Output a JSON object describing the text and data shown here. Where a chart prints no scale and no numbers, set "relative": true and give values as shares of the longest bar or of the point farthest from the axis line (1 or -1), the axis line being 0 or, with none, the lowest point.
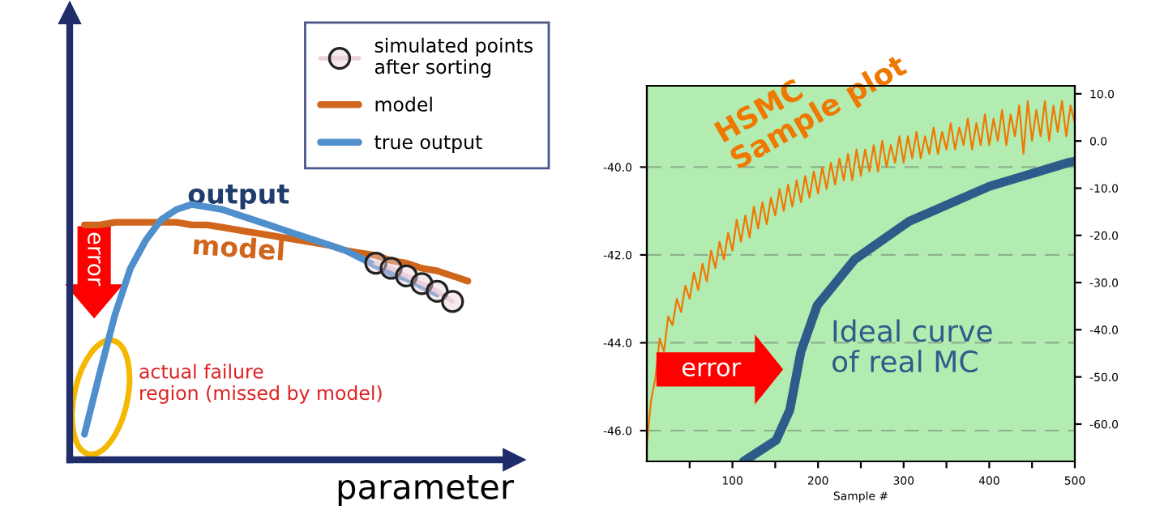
{
  "chart_data": [
    {
      "type": "line",
      "relative": true,
      "xlabel": "parameter",
      "legend": "top right",
      "categories": [
        null,
        null,
        null,
        null,
        null,
        null,
        null,
        null,
        null,
        null,
        null,
        null,
        null,
        null,
        null,
        null,
        null,
        null,
        null,
        null,
        null,
        null,
        null,
        null,
        null,
        null
      ],
      "series": [
        {
          "name": "simulated points\nafter sorting",
          "marker": "circle",
          "color": "#ead1dc",
          "values": [
            null,
            null,
            null,
            null,
            null,
            null,
            null,
            null,
            null,
            null,
            null,
            null,
            null,
            null,
            null,
            null,
            null,
            null,
            null,
            0.77,
            0.75,
            0.72,
            0.69,
            0.66,
            0.62,
            null
          ]
        },
        {
          "name": "model",
          "color": "#d0651c",
          "values": [
            0.92,
            0.92,
            0.93,
            0.93,
            0.93,
            0.93,
            0.93,
            0.92,
            0.92,
            0.91,
            0.9,
            0.89,
            0.88,
            0.87,
            0.86,
            0.85,
            0.84,
            0.82,
            0.81,
            0.8,
            0.78,
            0.77,
            0.75,
            0.74,
            0.72,
            0.7
          ]
        },
        {
          "name": "true output",
          "color": "#4f8fcc",
          "values": [
            0.1,
            0.34,
            0.57,
            0.75,
            0.86,
            0.94,
            0.98,
            1.0,
            0.99,
            0.98,
            0.96,
            0.94,
            0.92,
            0.9,
            0.88,
            0.86,
            0.84,
            0.82,
            0.79,
            0.76,
            0.73,
            0.71,
            0.68,
            0.65,
            null,
            null
          ]
        }
      ],
      "annotations": [
        "output",
        "model",
        "error",
        "actual failure\nregion (missed by model)"
      ]
    },
    {
      "type": "line",
      "xlabel": "Sample #",
      "grid": "y",
      "xlim": [
        0,
        500
      ],
      "ylim": [
        -46.7,
        -38.15
      ],
      "y2lim": [
        -67.9,
        11.7
      ],
      "xticks": [
        {
          "value": 50,
          "label": null
        },
        100,
        {
          "value": 150,
          "label": null
        },
        200,
        {
          "value": 250,
          "label": null
        },
        300,
        {
          "value": 350,
          "label": null
        },
        400,
        {
          "value": 450,
          "label": null
        },
        500
      ],
      "yticks": [
        {
          "value": -46,
          "label": "-46.0"
        },
        {
          "value": -44,
          "label": "-44.0"
        },
        {
          "value": -42,
          "label": "-42.0"
        },
        {
          "value": -40,
          "label": "-40.0"
        }
      ],
      "y2ticks": [
        {
          "value": -60,
          "label": "-60.0"
        },
        {
          "value": -50,
          "label": "-50.0"
        },
        {
          "value": -40,
          "label": "-40.0"
        },
        {
          "value": -30,
          "label": "-30.0"
        },
        {
          "value": -20,
          "label": "-20.0"
        },
        {
          "value": -10,
          "label": "-10.0"
        },
        {
          "value": 0,
          "label": "0.0"
        },
        {
          "value": 10,
          "label": "10.0"
        }
      ],
      "series": [
        {
          "name": "HSMC\nSample plot",
          "color": "#f07800",
          "x": [
            0,
            5,
            10,
            15,
            20,
            25,
            30,
            35,
            40,
            45,
            50,
            55,
            60,
            65,
            70,
            75,
            80,
            85,
            90,
            95,
            100,
            105,
            110,
            115,
            120,
            125,
            130,
            135,
            140,
            145,
            150,
            155,
            160,
            165,
            170,
            175,
            180,
            185,
            190,
            195,
            200,
            205,
            210,
            215,
            220,
            225,
            230,
            235,
            240,
            245,
            250,
            255,
            260,
            265,
            270,
            275,
            280,
            285,
            290,
            295,
            300,
            305,
            310,
            315,
            320,
            325,
            330,
            335,
            340,
            345,
            350,
            355,
            360,
            365,
            370,
            375,
            380,
            385,
            390,
            395,
            400,
            405,
            410,
            415,
            420,
            425,
            430,
            435,
            440,
            445,
            450,
            455,
            460,
            465,
            470,
            475,
            480,
            485,
            490,
            495,
            500
          ],
          "values": [
            -46.3,
            -45.3,
            -44.8,
            -43.9,
            -44.2,
            -43.4,
            -43.6,
            -43.0,
            -43.3,
            -42.7,
            -43.0,
            -42.4,
            -42.8,
            -42.2,
            -42.6,
            -41.9,
            -42.3,
            -41.7,
            -42.1,
            -41.5,
            -41.9,
            -41.2,
            -41.7,
            -41.1,
            -41.6,
            -40.9,
            -41.4,
            -40.8,
            -41.3,
            -40.7,
            -41.1,
            -40.5,
            -41.0,
            -40.4,
            -40.9,
            -40.3,
            -40.8,
            -40.2,
            -40.7,
            -40.1,
            -40.6,
            -40.0,
            -40.5,
            -39.9,
            -40.4,
            -39.8,
            -40.3,
            -39.7,
            -40.3,
            -39.6,
            -40.2,
            -39.6,
            -40.1,
            -39.5,
            -40.1,
            -39.4,
            -40.0,
            -39.5,
            -39.9,
            -39.3,
            -39.9,
            -39.3,
            -39.8,
            -39.2,
            -39.8,
            -39.3,
            -39.7,
            -39.1,
            -39.7,
            -39.2,
            -39.6,
            -39.0,
            -39.6,
            -39.1,
            -39.5,
            -38.9,
            -39.6,
            -39.0,
            -39.5,
            -38.8,
            -39.5,
            -38.9,
            -39.4,
            -38.7,
            -39.5,
            -38.8,
            -39.3,
            -38.6,
            -39.7,
            -38.5,
            -39.4,
            -38.7,
            -39.3,
            -38.5,
            -39.4,
            -38.6,
            -39.2,
            -38.5,
            -39.3,
            -38.6,
            -39.0
          ]
        },
        {
          "name": "Ideal curve\nof real MC",
          "color": "#2e5c8a",
          "x": [
            113,
            151,
            167,
            180,
            199,
            243,
            306,
            400,
            494,
            500
          ],
          "values": [
            -46.7,
            -46.22,
            -45.53,
            -44.2,
            -43.15,
            -42.1,
            -41.24,
            -40.44,
            -39.89,
            -39.87
          ]
        }
      ],
      "annotations": [
        "error"
      ]
    }
  ]
}
